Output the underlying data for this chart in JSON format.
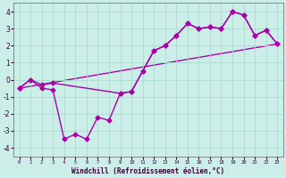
{
  "xlabel": "Windchill (Refroidissement éolien,°C)",
  "bg_color": "#cceee8",
  "grid_color": "#aaddcc",
  "line_color": "#aa00aa",
  "xlim": [
    -0.5,
    23.5
  ],
  "ylim": [
    -4.5,
    4.5
  ],
  "xticks": [
    0,
    1,
    2,
    3,
    4,
    5,
    6,
    7,
    8,
    9,
    10,
    11,
    12,
    13,
    14,
    15,
    16,
    17,
    18,
    19,
    20,
    21,
    22,
    23
  ],
  "yticks": [
    -4,
    -3,
    -2,
    -1,
    0,
    1,
    2,
    3,
    4
  ],
  "series1_x": [
    0,
    1,
    2,
    3,
    4,
    5,
    6,
    7,
    8,
    9,
    10,
    11,
    12,
    13,
    14,
    15,
    16,
    17,
    18,
    19,
    20,
    21,
    22,
    23
  ],
  "series1_y": [
    -0.5,
    0.0,
    -0.5,
    -0.6,
    -3.5,
    -3.2,
    -3.5,
    -2.2,
    -2.4,
    -0.8,
    -0.7,
    0.5,
    1.7,
    2.0,
    2.6,
    3.3,
    3.0,
    3.1,
    3.0,
    4.0,
    3.8,
    2.6,
    2.9,
    2.1
  ],
  "series2_x": [
    0,
    1,
    2,
    3,
    9,
    10,
    11,
    12,
    13,
    14,
    15,
    16,
    17,
    18,
    19,
    20,
    21,
    22,
    23
  ],
  "series2_y": [
    -0.5,
    0.0,
    -0.3,
    -0.2,
    -0.8,
    -0.7,
    0.5,
    1.7,
    2.0,
    2.6,
    3.3,
    3.0,
    3.1,
    3.0,
    4.0,
    3.8,
    2.6,
    2.9,
    2.1
  ],
  "series3_x": [
    0,
    23
  ],
  "series3_y": [
    -0.5,
    2.1
  ],
  "marker": "D",
  "markersize": 2.5,
  "linewidth": 1.0
}
